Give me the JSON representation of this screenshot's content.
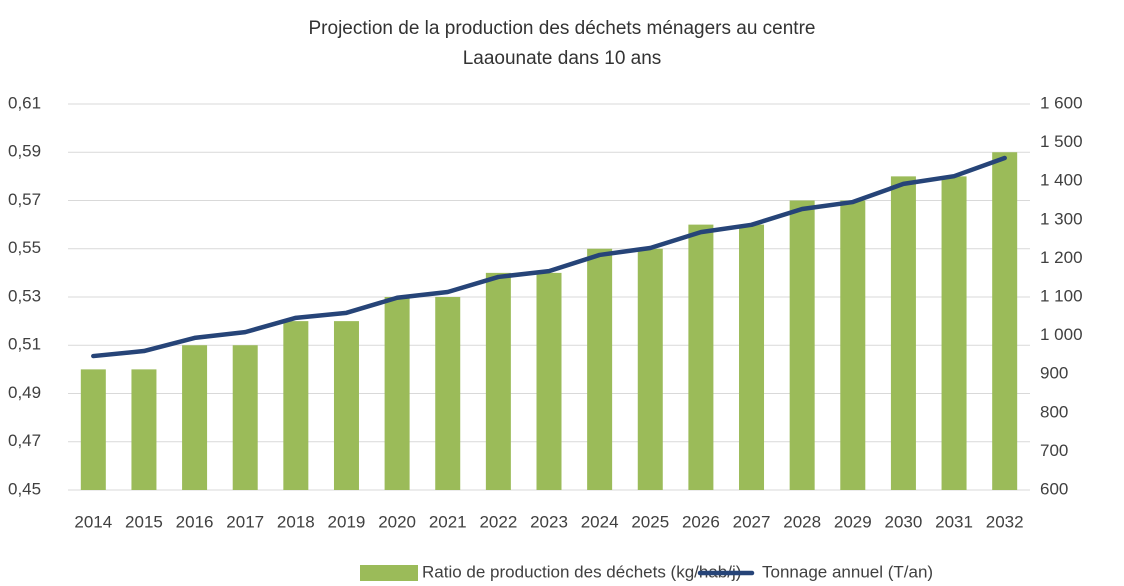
{
  "chart_data": {
    "type": "bar_line",
    "title": "Projection de la production des déchets ménagers au centre Laaounate dans 10 ans",
    "categories": [
      "2014",
      "2015",
      "2016",
      "2017",
      "2018",
      "2019",
      "2020",
      "2021",
      "2022",
      "2023",
      "2024",
      "2025",
      "2026",
      "2027",
      "2028",
      "2029",
      "2030",
      "2031",
      "2032"
    ],
    "series": [
      {
        "name": "Ratio de production des déchets (kg/hab/j)",
        "type": "bar",
        "color": "#9bbb59",
        "values": [
          0.5,
          0.5,
          0.51,
          0.51,
          0.52,
          0.52,
          0.53,
          0.53,
          0.54,
          0.54,
          0.55,
          0.55,
          0.56,
          0.56,
          0.57,
          0.57,
          0.58,
          0.58,
          0.59
        ]
      },
      {
        "name": "Tonnage annuel (T/an)",
        "type": "line",
        "axis": "y2",
        "color": "#264478",
        "values": [
          947,
          960,
          994,
          1009,
          1046,
          1059,
          1098,
          1113,
          1152,
          1167,
          1209,
          1227,
          1268,
          1287,
          1328,
          1346,
          1393,
          1413,
          1460
        ]
      }
    ],
    "ylim": [
      0.45,
      0.61
    ],
    "yticks": [
      {
        "value": 0.45,
        "label": "0,45"
      },
      {
        "value": 0.47,
        "label": "0,47"
      },
      {
        "value": 0.49,
        "label": "0,49"
      },
      {
        "value": 0.51,
        "label": "0,51"
      },
      {
        "value": 0.53,
        "label": "0,53"
      },
      {
        "value": 0.55,
        "label": "0,55"
      },
      {
        "value": 0.57,
        "label": "0,57"
      },
      {
        "value": 0.59,
        "label": "0,59"
      },
      {
        "value": 0.61,
        "label": "0,61"
      }
    ],
    "y2lim": [
      600,
      1600
    ],
    "y2ticks": [
      600,
      700,
      800,
      900,
      {
        "value": 1000,
        "label": "1 000"
      },
      {
        "value": 1100,
        "label": "1 100"
      },
      {
        "value": 1200,
        "label": "1 200"
      },
      {
        "value": 1300,
        "label": "1 300"
      },
      {
        "value": 1400,
        "label": "1 400"
      },
      {
        "value": 1500,
        "label": "1 500"
      },
      {
        "value": 1600,
        "label": "1 600"
      }
    ],
    "grid": true,
    "legend": "bottom"
  }
}
